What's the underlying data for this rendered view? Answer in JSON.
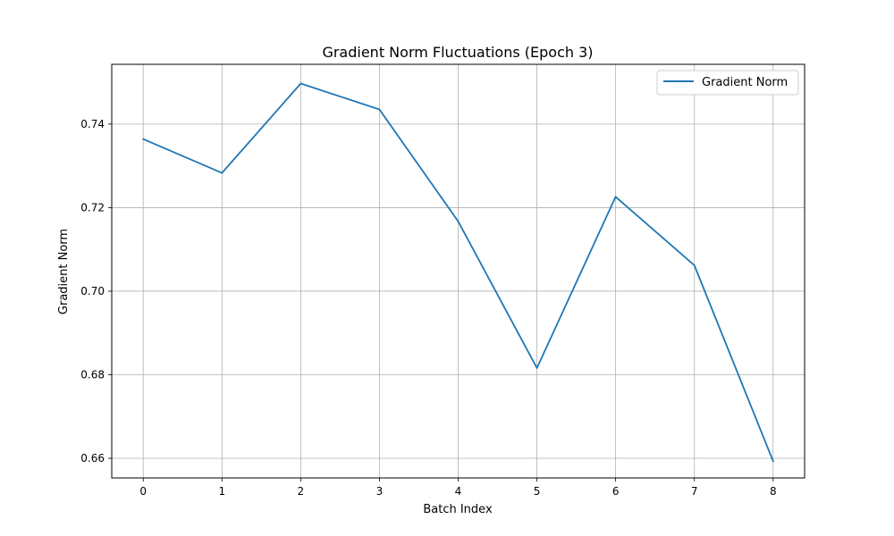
{
  "chart_data": {
    "type": "line",
    "title": "Gradient Norm Fluctuations (Epoch 3)",
    "xlabel": "Batch Index",
    "ylabel": "Gradient Norm",
    "x": [
      0,
      1,
      2,
      3,
      4,
      5,
      6,
      7,
      8
    ],
    "series": [
      {
        "name": "Gradient Norm",
        "color": "#1f77b4",
        "values": [
          0.7364,
          0.7283,
          0.7497,
          0.7435,
          0.7167,
          0.6816,
          0.7226,
          0.7062,
          0.6593
        ]
      }
    ],
    "xlim": [
      -0.4,
      8.4
    ],
    "ylim": [
      0.6553,
      0.7543
    ],
    "xticks": [
      "0",
      "1",
      "2",
      "3",
      "4",
      "5",
      "6",
      "7",
      "8"
    ],
    "yticks": [
      "0.66",
      "0.68",
      "0.70",
      "0.72",
      "0.74"
    ],
    "grid": true,
    "legend_position": "top-right"
  }
}
